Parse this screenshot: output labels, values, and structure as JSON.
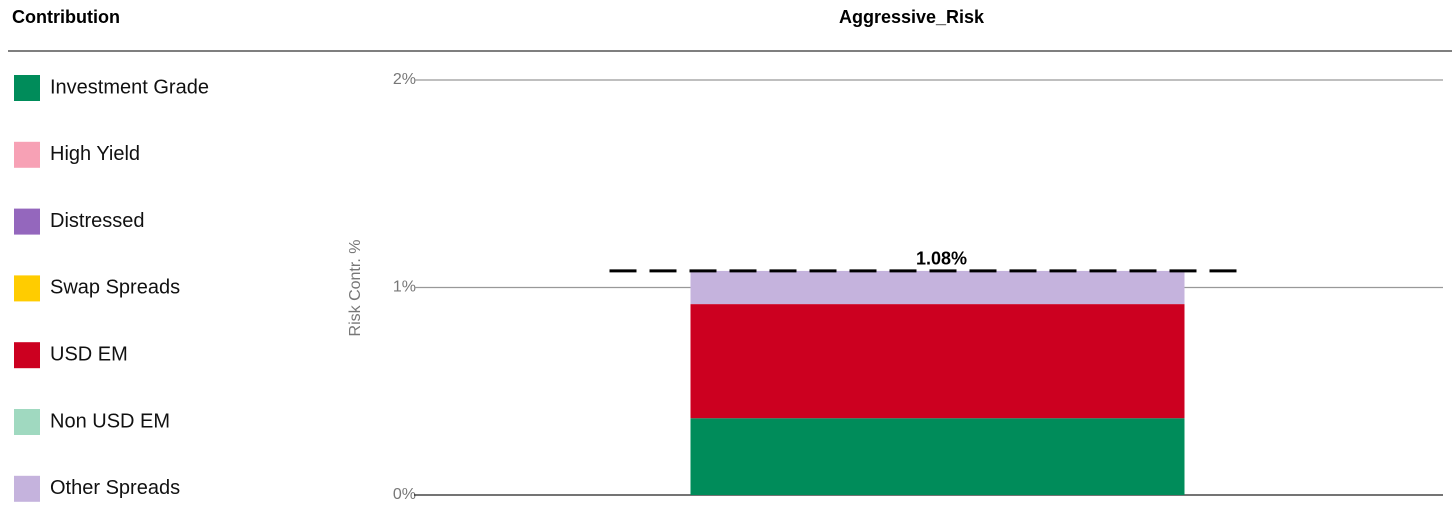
{
  "chart_data": {
    "type": "stacked_bar",
    "legend_title": "Contribution",
    "categories": [
      "Aggressive_Risk"
    ],
    "y_label": "Risk Contr. %",
    "series": [
      {
        "name": "Investment Grade",
        "color": "#008c5a",
        "values": [
          0.37
        ]
      },
      {
        "name": "High Yield",
        "color": "#f7a1b5",
        "values": [
          0
        ]
      },
      {
        "name": "Distressed",
        "color": "#9467bd",
        "values": [
          0
        ]
      },
      {
        "name": "Swap Spreads",
        "color": "#ffcc00",
        "values": [
          0
        ]
      },
      {
        "name": "USD EM",
        "color": "#cc0020",
        "values": [
          0.55
        ]
      },
      {
        "name": "Non USD EM",
        "color": "#a0d9c0",
        "values": [
          0
        ]
      },
      {
        "name": "Other Spreads",
        "color": "#c5b3dd",
        "values": [
          0.16
        ]
      }
    ],
    "totals": [
      1.08
    ],
    "total_labels": [
      "1.08%"
    ],
    "ylim": [
      0,
      2
    ],
    "yticks": [
      {
        "value": 0,
        "label": "0%"
      },
      {
        "value": 1,
        "label": "1%"
      },
      {
        "value": 2,
        "label": "2%"
      }
    ],
    "grid": true,
    "legend": "left"
  }
}
